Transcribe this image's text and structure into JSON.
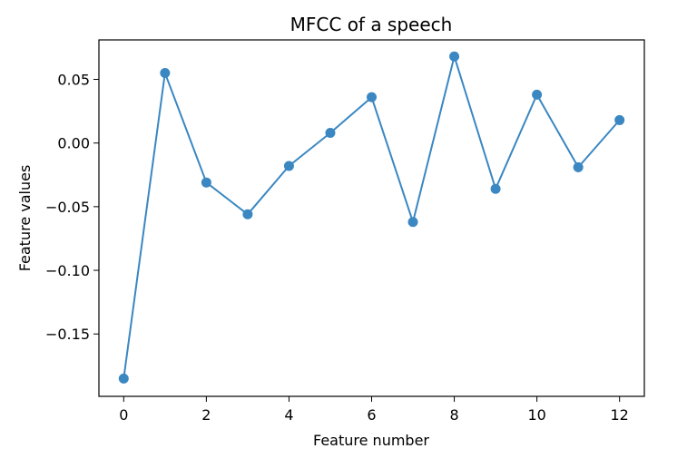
{
  "chart_data": {
    "type": "line",
    "title": "MFCC of a speech",
    "xlabel": "Feature number",
    "ylabel": "Feature values",
    "xlim": [
      -0.6,
      12.6
    ],
    "ylim": [
      -0.199,
      0.081
    ],
    "xticks": [
      0,
      2,
      4,
      6,
      8,
      10,
      12
    ],
    "xtick_labels": [
      "0",
      "2",
      "4",
      "6",
      "8",
      "10",
      "12"
    ],
    "yticks": [
      0.05,
      0.0,
      -0.05,
      -0.1,
      -0.15
    ],
    "ytick_labels": [
      "0.05",
      "0.00",
      "−0.05",
      "−0.10",
      "−0.15"
    ],
    "grid": false,
    "series": [
      {
        "color": "#3a87c2",
        "marker": "circle",
        "x": [
          0,
          1,
          2,
          3,
          4,
          5,
          6,
          7,
          8,
          9,
          10,
          11,
          12
        ],
        "y": [
          -0.185,
          0.055,
          -0.031,
          -0.056,
          -0.018,
          0.008,
          0.036,
          -0.062,
          0.068,
          -0.036,
          0.038,
          -0.019,
          0.018
        ]
      }
    ]
  }
}
